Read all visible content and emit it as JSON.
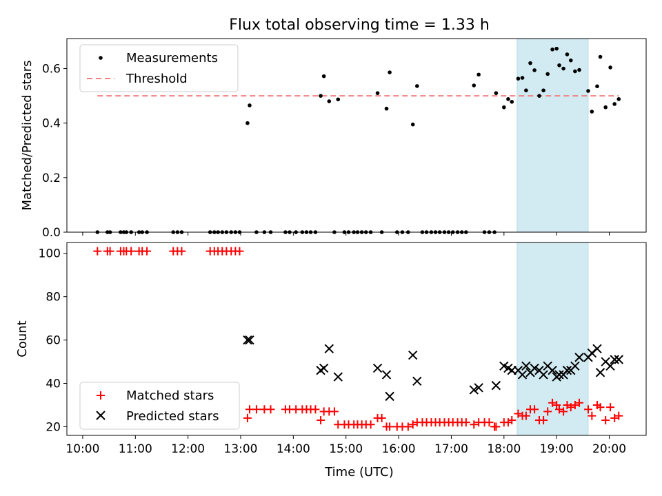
{
  "chart_data": [
    {
      "type": "scatter",
      "title": "Flux total observing time = 1.33 h",
      "xlabel": "",
      "ylabel": "Matched/Predicted stars",
      "xlim": [
        9.7,
        20.7
      ],
      "ylim": [
        0,
        0.71
      ],
      "yticks": [
        0.0,
        0.2,
        0.4,
        0.6
      ],
      "ytick_labels": [
        "0.0",
        "0.2",
        "0.4",
        "0.6"
      ],
      "xticks": [
        10,
        11,
        12,
        13,
        14,
        15,
        16,
        17,
        18,
        19,
        20
      ],
      "xtick_labels": [],
      "highlight_span": [
        18.25,
        19.6
      ],
      "legend_position": "upper left",
      "series": [
        {
          "name": "Measurements",
          "kind": "points",
          "color": "#000000",
          "points": [
            [
              10.28,
              0
            ],
            [
              10.47,
              0
            ],
            [
              10.52,
              0
            ],
            [
              10.72,
              0
            ],
            [
              10.78,
              0
            ],
            [
              10.83,
              0
            ],
            [
              10.92,
              0
            ],
            [
              11.07,
              0
            ],
            [
              11.13,
              0
            ],
            [
              11.22,
              0
            ],
            [
              11.72,
              0
            ],
            [
              11.8,
              0
            ],
            [
              11.88,
              0
            ],
            [
              12.42,
              0
            ],
            [
              12.5,
              0
            ],
            [
              12.57,
              0
            ],
            [
              12.65,
              0
            ],
            [
              12.73,
              0
            ],
            [
              12.82,
              0
            ],
            [
              12.9,
              0
            ],
            [
              12.98,
              0
            ],
            [
              13.13,
              0.4
            ],
            [
              13.17,
              0.465
            ],
            [
              13.3,
              0
            ],
            [
              13.45,
              0
            ],
            [
              13.57,
              0
            ],
            [
              13.85,
              0
            ],
            [
              13.93,
              0
            ],
            [
              14.05,
              0
            ],
            [
              14.17,
              0
            ],
            [
              14.25,
              0
            ],
            [
              14.33,
              0
            ],
            [
              14.42,
              0
            ],
            [
              14.52,
              0.5
            ],
            [
              14.58,
              0.572
            ],
            [
              14.68,
              0.48
            ],
            [
              14.78,
              0
            ],
            [
              14.85,
              0.487
            ],
            [
              14.97,
              0
            ],
            [
              15.05,
              0
            ],
            [
              15.15,
              0
            ],
            [
              15.22,
              0
            ],
            [
              15.3,
              0
            ],
            [
              15.38,
              0
            ],
            [
              15.47,
              0
            ],
            [
              15.6,
              0.51
            ],
            [
              15.68,
              0
            ],
            [
              15.77,
              0.453
            ],
            [
              15.83,
              0.586
            ],
            [
              15.97,
              0
            ],
            [
              16.07,
              0
            ],
            [
              16.18,
              0
            ],
            [
              16.27,
              0.395
            ],
            [
              16.35,
              0.536
            ],
            [
              16.45,
              0
            ],
            [
              16.53,
              0
            ],
            [
              16.62,
              0
            ],
            [
              16.7,
              0
            ],
            [
              16.78,
              0
            ],
            [
              16.87,
              0
            ],
            [
              16.95,
              0
            ],
            [
              17.03,
              0
            ],
            [
              17.12,
              0
            ],
            [
              17.2,
              0
            ],
            [
              17.28,
              0
            ],
            [
              17.43,
              0.538
            ],
            [
              17.52,
              0.578
            ],
            [
              17.63,
              0
            ],
            [
              17.72,
              0
            ],
            [
              17.82,
              0
            ],
            [
              17.85,
              0.51
            ],
            [
              18.0,
              0.458
            ],
            [
              18.08,
              0.488
            ],
            [
              18.15,
              0.478
            ],
            [
              18.27,
              0.563
            ],
            [
              18.35,
              0.566
            ],
            [
              18.42,
              0.52
            ],
            [
              18.5,
              0.62
            ],
            [
              18.58,
              0.594
            ],
            [
              18.67,
              0.5
            ],
            [
              18.75,
              0.52
            ],
            [
              18.83,
              0.58
            ],
            [
              18.92,
              0.67
            ],
            [
              19.0,
              0.673
            ],
            [
              19.05,
              0.612
            ],
            [
              19.13,
              0.6
            ],
            [
              19.2,
              0.652
            ],
            [
              19.27,
              0.63
            ],
            [
              19.35,
              0.59
            ],
            [
              19.43,
              0.595
            ],
            [
              19.6,
              0.518
            ],
            [
              19.67,
              0.442
            ],
            [
              19.77,
              0.535
            ],
            [
              19.83,
              0.643
            ],
            [
              19.93,
              0.458
            ],
            [
              20.02,
              0.604
            ],
            [
              20.1,
              0.47
            ],
            [
              20.18,
              0.488
            ]
          ]
        },
        {
          "name": "Threshold",
          "kind": "dashed-line",
          "color": "#f08080",
          "x": [
            10.28,
            20.18
          ],
          "y": [
            0.5,
            0.5
          ]
        }
      ]
    },
    {
      "type": "scatter",
      "title": "",
      "xlabel": "Time (UTC)",
      "ylabel": "Count",
      "xlim": [
        9.7,
        20.7
      ],
      "ylim": [
        16,
        105
      ],
      "yticks": [
        20,
        40,
        60,
        80,
        100
      ],
      "ytick_labels": [
        "20",
        "40",
        "60",
        "80",
        "100"
      ],
      "xticks": [
        10,
        11,
        12,
        13,
        14,
        15,
        16,
        17,
        18,
        19,
        20
      ],
      "xtick_labels": [
        "10:00",
        "11:00",
        "12:00",
        "13:00",
        "14:00",
        "15:00",
        "16:00",
        "17:00",
        "18:00",
        "19:00",
        "20:00"
      ],
      "highlight_span": [
        18.25,
        19.6
      ],
      "legend_position": "lower left",
      "series": [
        {
          "name": "Matched stars",
          "kind": "plus",
          "color": "#ff0000",
          "points": [
            [
              10.28,
              101
            ],
            [
              10.47,
              101
            ],
            [
              10.52,
              101
            ],
            [
              10.72,
              101
            ],
            [
              10.78,
              101
            ],
            [
              10.83,
              101
            ],
            [
              10.92,
              101
            ],
            [
              11.07,
              101
            ],
            [
              11.13,
              101
            ],
            [
              11.22,
              101
            ],
            [
              11.72,
              101
            ],
            [
              11.8,
              101
            ],
            [
              11.88,
              101
            ],
            [
              12.42,
              101
            ],
            [
              12.5,
              101
            ],
            [
              12.57,
              101
            ],
            [
              12.65,
              101
            ],
            [
              12.73,
              101
            ],
            [
              12.82,
              101
            ],
            [
              12.9,
              101
            ],
            [
              12.98,
              101
            ],
            [
              13.13,
              24
            ],
            [
              13.17,
              28
            ],
            [
              13.3,
              28
            ],
            [
              13.45,
              28
            ],
            [
              13.57,
              28
            ],
            [
              13.85,
              28
            ],
            [
              13.93,
              28
            ],
            [
              14.05,
              28
            ],
            [
              14.17,
              28
            ],
            [
              14.25,
              28
            ],
            [
              14.33,
              28
            ],
            [
              14.42,
              28
            ],
            [
              14.52,
              23
            ],
            [
              14.58,
              27
            ],
            [
              14.68,
              27
            ],
            [
              14.78,
              27
            ],
            [
              14.85,
              21
            ],
            [
              14.97,
              21
            ],
            [
              15.05,
              21
            ],
            [
              15.15,
              21
            ],
            [
              15.22,
              21
            ],
            [
              15.3,
              21
            ],
            [
              15.38,
              21
            ],
            [
              15.47,
              21
            ],
            [
              15.6,
              24
            ],
            [
              15.68,
              24
            ],
            [
              15.77,
              20
            ],
            [
              15.83,
              20
            ],
            [
              15.97,
              20
            ],
            [
              16.07,
              20
            ],
            [
              16.18,
              20
            ],
            [
              16.27,
              21
            ],
            [
              16.35,
              22
            ],
            [
              16.45,
              22
            ],
            [
              16.53,
              22
            ],
            [
              16.62,
              22
            ],
            [
              16.7,
              22
            ],
            [
              16.78,
              22
            ],
            [
              16.87,
              22
            ],
            [
              16.95,
              22
            ],
            [
              17.03,
              22
            ],
            [
              17.12,
              22
            ],
            [
              17.2,
              22
            ],
            [
              17.28,
              22
            ],
            [
              17.43,
              21
            ],
            [
              17.52,
              22
            ],
            [
              17.63,
              22
            ],
            [
              17.72,
              22
            ],
            [
              17.82,
              20
            ],
            [
              17.85,
              20
            ],
            [
              18.0,
              22
            ],
            [
              18.08,
              22
            ],
            [
              18.15,
              23
            ],
            [
              18.27,
              26
            ],
            [
              18.35,
              25
            ],
            [
              18.42,
              25
            ],
            [
              18.5,
              28
            ],
            [
              18.58,
              28
            ],
            [
              18.67,
              23
            ],
            [
              18.75,
              23
            ],
            [
              18.83,
              27
            ],
            [
              18.92,
              31
            ],
            [
              19.0,
              30
            ],
            [
              19.05,
              28
            ],
            [
              19.13,
              27
            ],
            [
              19.2,
              30
            ],
            [
              19.27,
              29
            ],
            [
              19.35,
              30
            ],
            [
              19.43,
              31
            ],
            [
              19.6,
              28
            ],
            [
              19.67,
              25
            ],
            [
              19.77,
              30
            ],
            [
              19.83,
              29
            ],
            [
              19.93,
              23
            ],
            [
              20.02,
              29
            ],
            [
              20.1,
              24
            ],
            [
              20.18,
              25
            ]
          ]
        },
        {
          "name": "Predicted stars",
          "kind": "x",
          "color": "#000000",
          "points": [
            [
              13.13,
              60
            ],
            [
              13.17,
              60
            ],
            [
              14.52,
              46
            ],
            [
              14.58,
              47
            ],
            [
              14.68,
              56
            ],
            [
              14.85,
              43
            ],
            [
              15.6,
              47
            ],
            [
              15.77,
              44
            ],
            [
              15.83,
              34
            ],
            [
              16.27,
              53
            ],
            [
              16.35,
              41
            ],
            [
              17.43,
              37
            ],
            [
              17.52,
              38
            ],
            [
              17.85,
              39
            ],
            [
              18.0,
              48
            ],
            [
              18.08,
              47
            ],
            [
              18.15,
              46
            ],
            [
              18.27,
              46
            ],
            [
              18.35,
              44
            ],
            [
              18.42,
              48
            ],
            [
              18.5,
              45
            ],
            [
              18.58,
              47
            ],
            [
              18.67,
              46
            ],
            [
              18.75,
              44
            ],
            [
              18.83,
              48
            ],
            [
              18.92,
              46
            ],
            [
              19.0,
              43
            ],
            [
              19.05,
              44
            ],
            [
              19.13,
              44
            ],
            [
              19.2,
              46
            ],
            [
              19.27,
              46
            ],
            [
              19.35,
              48
            ],
            [
              19.43,
              52
            ],
            [
              19.6,
              52
            ],
            [
              19.67,
              54
            ],
            [
              19.77,
              56
            ],
            [
              19.83,
              45
            ],
            [
              19.93,
              50
            ],
            [
              20.02,
              48
            ],
            [
              20.1,
              51
            ],
            [
              20.18,
              51
            ]
          ]
        }
      ]
    }
  ]
}
